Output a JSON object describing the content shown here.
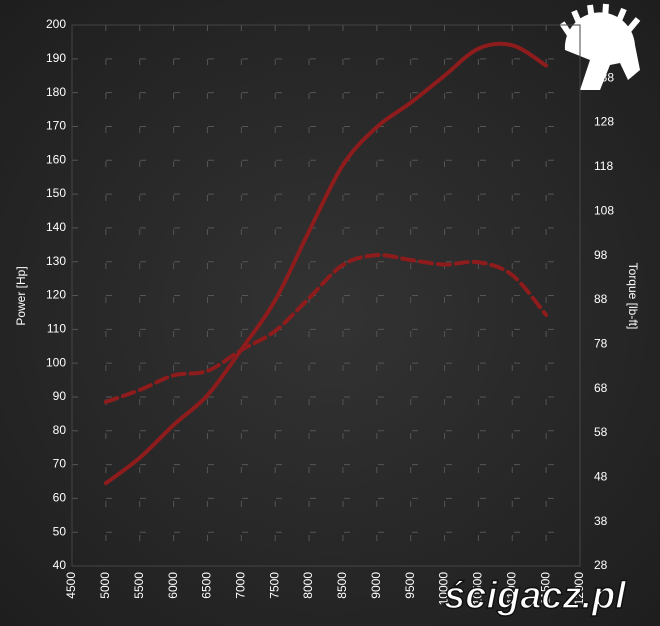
{
  "chart_data": {
    "type": "line",
    "ylabel": "Power [Hp]",
    "y2label": "Torque [lb-ft]",
    "x": [
      5000,
      5500,
      6000,
      6500,
      7000,
      7500,
      8000,
      8500,
      9000,
      9500,
      10000,
      10500,
      11000,
      11500
    ],
    "series": [
      {
        "name": "Power",
        "color": "#8e1c1c",
        "dashed": false,
        "values": [
          64.5,
          72,
          81.7,
          90.5,
          104,
          118.6,
          139,
          158.6,
          169.8,
          177,
          185,
          193,
          194,
          188
        ]
      },
      {
        "name": "Torque",
        "color": "#8e1c1c",
        "dashed": true,
        "axis": "y2",
        "values": [
          65,
          67.7,
          71,
          72,
          76.7,
          81,
          88.4,
          95.9,
          98.1,
          97,
          96,
          96.5,
          93.6,
          84.6
        ]
      }
    ],
    "xlim": [
      4500,
      12000
    ],
    "xticks": [
      4500,
      5000,
      5500,
      6000,
      6500,
      7000,
      7500,
      8000,
      8500,
      9000,
      9500,
      10000,
      10500,
      11000,
      11500,
      12000
    ],
    "ylim": [
      40,
      200
    ],
    "yticks": [
      40,
      50,
      60,
      70,
      80,
      90,
      100,
      110,
      120,
      130,
      140,
      150,
      160,
      170,
      180,
      190,
      200
    ],
    "y2lim": [
      28,
      150
    ],
    "y2ticks": [
      28,
      38,
      48,
      58,
      68,
      78,
      88,
      98,
      108,
      118,
      128,
      138
    ],
    "grid": true
  },
  "watermark": "ścigacz.pl"
}
